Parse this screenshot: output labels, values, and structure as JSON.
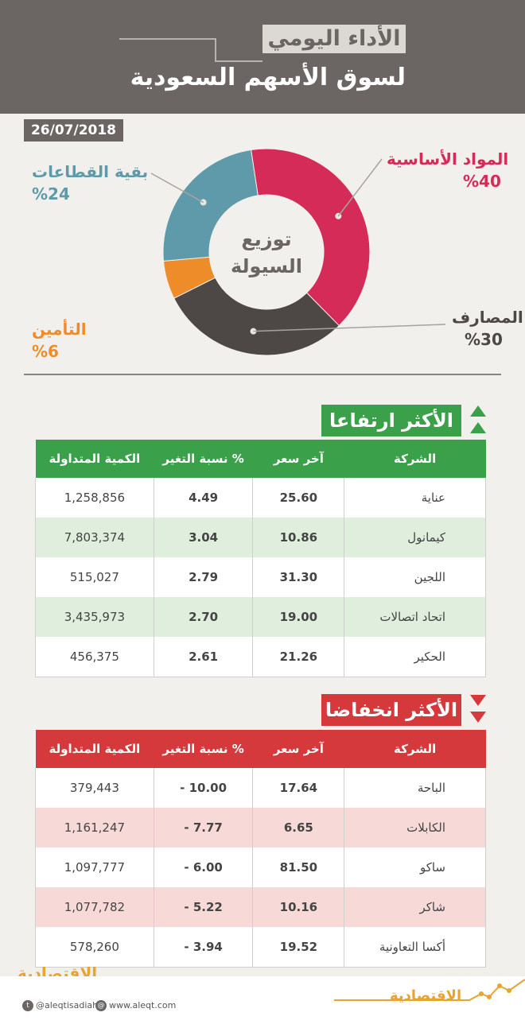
{
  "header": {
    "subtitle": "الأداء اليومي",
    "title": "لسوق الأسهم السعودية",
    "bg": "#6b6664"
  },
  "date": "26/07/2018",
  "pie": {
    "center_line1": "توزيع",
    "center_line2": "السيولة",
    "slices": [
      {
        "name": "المواد الأساسية",
        "pct_label": "%40",
        "value": 40,
        "color": "#d52b58"
      },
      {
        "name": "المصارف",
        "pct_label": "%30",
        "value": 30,
        "color": "#4d4846"
      },
      {
        "name": "التأمين",
        "pct_label": "%6",
        "value": 6,
        "color": "#ef8c2a"
      },
      {
        "name": "بقية القطاعات",
        "pct_label": "%24",
        "value": 24,
        "color": "#5f9aab"
      }
    ]
  },
  "gainers": {
    "title": "الأكثر ارتفاعا",
    "accent": "#3aa14a",
    "headers": [
      "الشركة",
      "آخر سعر",
      "نسبة التغير %",
      "الكمية المتداولة"
    ],
    "rows": [
      {
        "company": "عناية",
        "price": "25.60",
        "change": "4.49",
        "volume": "1,258,856"
      },
      {
        "company": "كيمانول",
        "price": "10.86",
        "change": "3.04",
        "volume": "7,803,374"
      },
      {
        "company": "اللجين",
        "price": "31.30",
        "change": "2.79",
        "volume": "515,027"
      },
      {
        "company": "اتحاد اتصالات",
        "price": "19.00",
        "change": "2.70",
        "volume": "3,435,973"
      },
      {
        "company": "الحكير",
        "price": "21.26",
        "change": "2.61",
        "volume": "456,375"
      }
    ]
  },
  "losers": {
    "title": "الأكثر انخفاضا",
    "accent": "#d5393c",
    "headers": [
      "الشركة",
      "آخر سعر",
      "نسبة التغير %",
      "الكمية المتداولة"
    ],
    "rows": [
      {
        "company": "الباحة",
        "price": "17.64",
        "change": "- 10.00",
        "volume": "379,443"
      },
      {
        "company": "الكابلات",
        "price": "6.65",
        "change": "- 7.77",
        "volume": "1,161,247"
      },
      {
        "company": "ساكو",
        "price": "81.50",
        "change": "- 6.00",
        "volume": "1,097,777"
      },
      {
        "company": "شاكر",
        "price": "10.16",
        "change": "- 5.22",
        "volume": "1,077,782"
      },
      {
        "company": "أكسا التعاونية",
        "price": "19.52",
        "change": "- 3.94",
        "volume": "578,260"
      }
    ]
  },
  "footer": {
    "logo": "الاقتصادية",
    "twitter": "@aleqtisadiah",
    "website": "www.aleqt.com",
    "twitter_icon": "twitter-icon",
    "globe_icon": "globe-icon"
  }
}
